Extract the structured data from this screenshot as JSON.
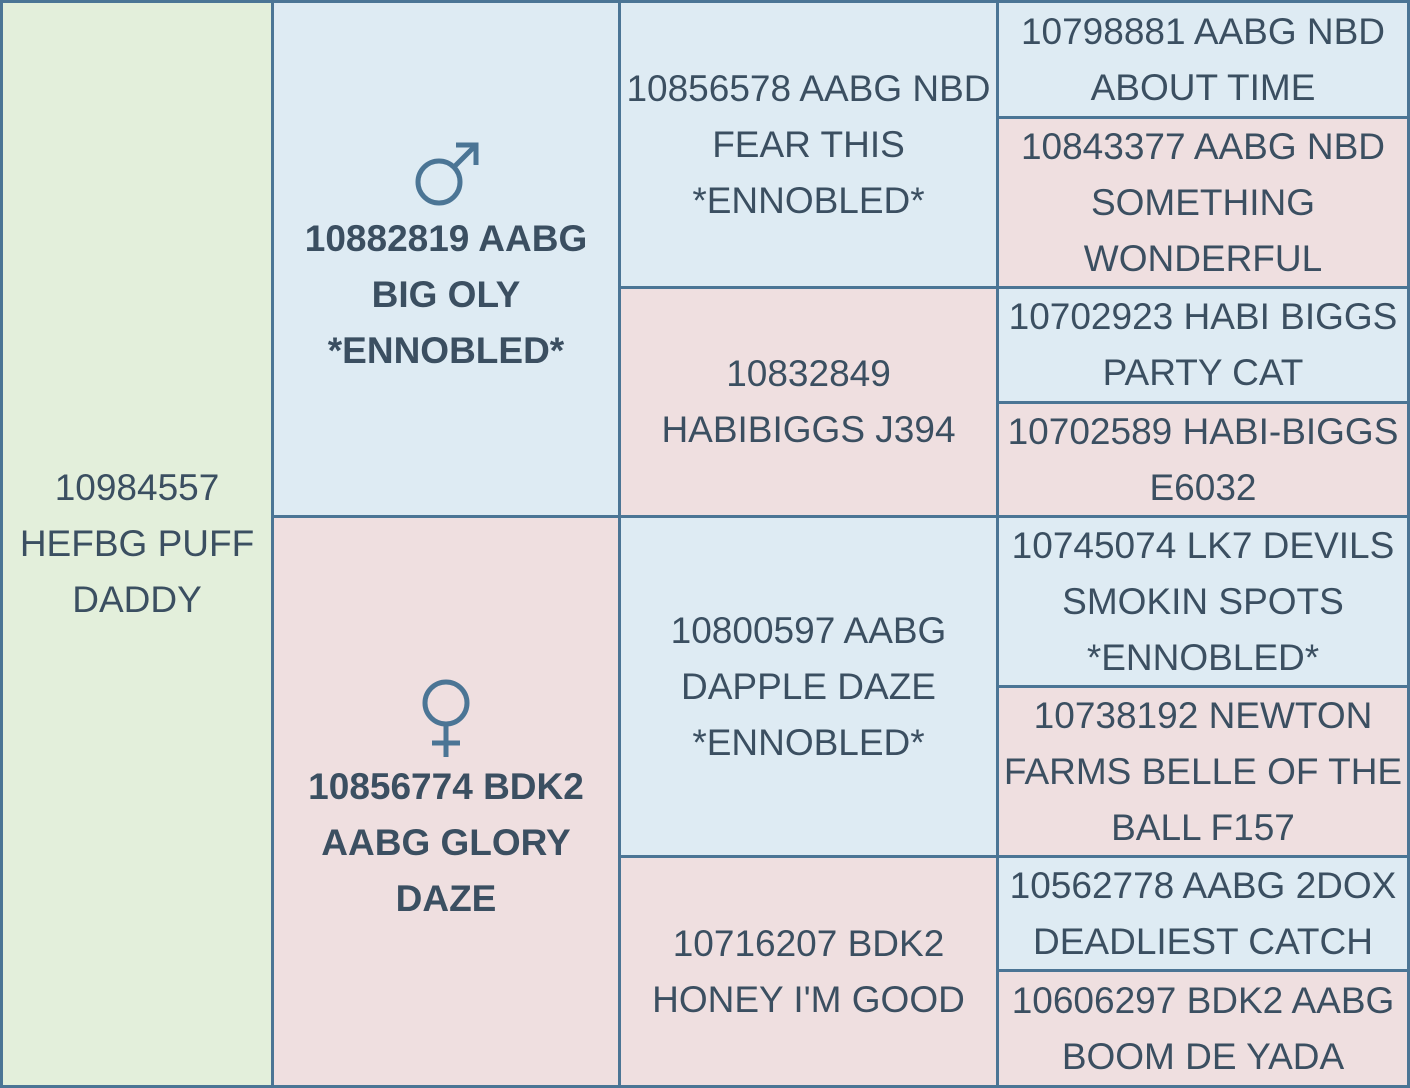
{
  "subject": {
    "name": "10984557 HEFBG PUFF DADDY"
  },
  "sire": {
    "name": "10882819 AABG BIG OLY *ENNOBLED*",
    "symbol": "male-symbol-icon",
    "sire": {
      "name": "10856578 AABG NBD FEAR THIS *ENNOBLED*",
      "sire": {
        "name": "10798881 AABG NBD ABOUT TIME"
      },
      "dam": {
        "name": "10843377 AABG NBD SOMETHING WONDERFUL"
      }
    },
    "dam": {
      "name": "10832849 HABIBIGGS J394",
      "sire": {
        "name": "10702923 HABI BIGGS PARTY CAT"
      },
      "dam": {
        "name": "10702589 HABI-BIGGS E6032"
      }
    }
  },
  "dam": {
    "name": "10856774 BDK2 AABG GLORY DAZE",
    "symbol": "female-symbol-icon",
    "sire": {
      "name": "10800597 AABG DAPPLE DAZE *ENNOBLED*",
      "sire": {
        "name": "10745074 LK7 DEVILS SMOKIN SPOTS *ENNOBLED*"
      },
      "dam": {
        "name": "10738192 NEWTON FARMS BELLE OF THE BALL F157"
      }
    },
    "dam": {
      "name": "10716207 BDK2 HONEY I'M GOOD",
      "sire": {
        "name": "10562778 AABG 2DOX DEADLIEST CATCH"
      },
      "dam": {
        "name": "10606297 BDK2 AABG BOOM DE YADA"
      }
    }
  },
  "colors": {
    "male": "#deebf3",
    "female": "#efdfe0",
    "subject": "#e3efdb",
    "border": "#4b7595",
    "text": "#3b4f61"
  }
}
